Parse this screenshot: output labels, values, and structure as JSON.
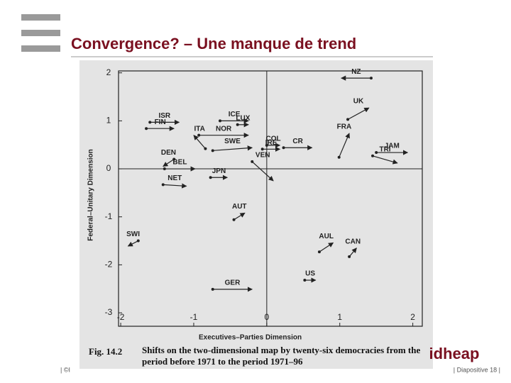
{
  "slide": {
    "title": "Convergence? – Une manque de trend",
    "footer_left": "| ©I",
    "footer_right": "| Diapositive 18 |",
    "logo": "idheap"
  },
  "chart_data": {
    "type": "arrow",
    "caption_label": "Fig. 14.2",
    "caption": "Shifts on the two-dimensional map by twenty-six democracies from the period before 1971 to the period 1971–96",
    "x_label": "Executives–Parties Dimension",
    "y_label": "Federal–Unitary Dimension",
    "xlim": [
      -2.03,
      2.13
    ],
    "ylim": [
      -3.28,
      2.04
    ],
    "xticks": [
      -2,
      -1,
      0,
      1,
      2
    ],
    "yticks": [
      -3,
      -2,
      -1,
      0,
      1,
      2
    ],
    "zero_lines": true,
    "color": "#222222",
    "points": [
      {
        "name": "NZ",
        "x0": 1.43,
        "y0": 1.89,
        "x1": 1.02,
        "y1": 1.89
      },
      {
        "name": "ISR",
        "x0": -1.6,
        "y0": 0.97,
        "x1": -1.2,
        "y1": 0.97
      },
      {
        "name": "FIN",
        "x0": -1.65,
        "y0": 0.84,
        "x1": -1.27,
        "y1": 0.84
      },
      {
        "name": "ICE",
        "x0": -0.64,
        "y0": 1.0,
        "x1": -0.25,
        "y1": 1.0
      },
      {
        "name": "LUX",
        "x0": -0.4,
        "y0": 0.92,
        "x1": -0.25,
        "y1": 0.92
      },
      {
        "name": "NOR",
        "x0": -0.93,
        "y0": 0.7,
        "x1": -0.25,
        "y1": 0.7
      },
      {
        "name": "UK",
        "x0": 1.11,
        "y0": 1.03,
        "x1": 1.4,
        "y1": 1.27
      },
      {
        "name": "FRA",
        "x0": 0.99,
        "y0": 0.24,
        "x1": 1.13,
        "y1": 0.74
      },
      {
        "name": "COL",
        "x0": 0.0,
        "y0": 0.49,
        "x1": 0.18,
        "y1": 0.49
      },
      {
        "name": "CR",
        "x0": 0.23,
        "y0": 0.44,
        "x1": 0.62,
        "y1": 0.44
      },
      {
        "name": "IRE",
        "x0": -0.06,
        "y0": 0.41,
        "x1": 0.18,
        "y1": 0.41
      },
      {
        "name": "ITA",
        "x0": -0.84,
        "y0": 0.42,
        "x1": -1.0,
        "y1": 0.7
      },
      {
        "name": "SWE",
        "x0": -0.74,
        "y0": 0.38,
        "x1": -0.2,
        "y1": 0.44
      },
      {
        "name": "DEN",
        "x0": -1.27,
        "y0": 0.2,
        "x1": -1.42,
        "y1": 0.05
      },
      {
        "name": "JAM",
        "x0": 1.5,
        "y0": 0.34,
        "x1": 1.93,
        "y1": 0.34
      },
      {
        "name": "TRI",
        "x0": 1.45,
        "y0": 0.27,
        "x1": 1.79,
        "y1": 0.12
      },
      {
        "name": "VEN",
        "x0": -0.2,
        "y0": 0.15,
        "x1": 0.09,
        "y1": -0.25
      },
      {
        "name": "BEL",
        "x0": -1.4,
        "y0": 0.0,
        "x1": -0.98,
        "y1": 0.0
      },
      {
        "name": "NET",
        "x0": -1.42,
        "y0": -0.33,
        "x1": -1.1,
        "y1": -0.36
      },
      {
        "name": "JPN",
        "x0": -0.77,
        "y0": -0.18,
        "x1": -0.54,
        "y1": -0.18
      },
      {
        "name": "AUT",
        "x0": -0.45,
        "y0": -1.06,
        "x1": -0.3,
        "y1": -0.92
      },
      {
        "name": "SWI",
        "x0": -1.76,
        "y0": -1.5,
        "x1": -1.9,
        "y1": -1.61
      },
      {
        "name": "AUL",
        "x0": 0.72,
        "y0": -1.73,
        "x1": 0.91,
        "y1": -1.54
      },
      {
        "name": "CAN",
        "x0": 1.13,
        "y0": -1.83,
        "x1": 1.23,
        "y1": -1.65
      },
      {
        "name": "GER",
        "x0": -0.74,
        "y0": -2.51,
        "x1": -0.2,
        "y1": -2.51
      },
      {
        "name": "US",
        "x0": 0.52,
        "y0": -2.32,
        "x1": 0.67,
        "y1": -2.32
      }
    ]
  }
}
